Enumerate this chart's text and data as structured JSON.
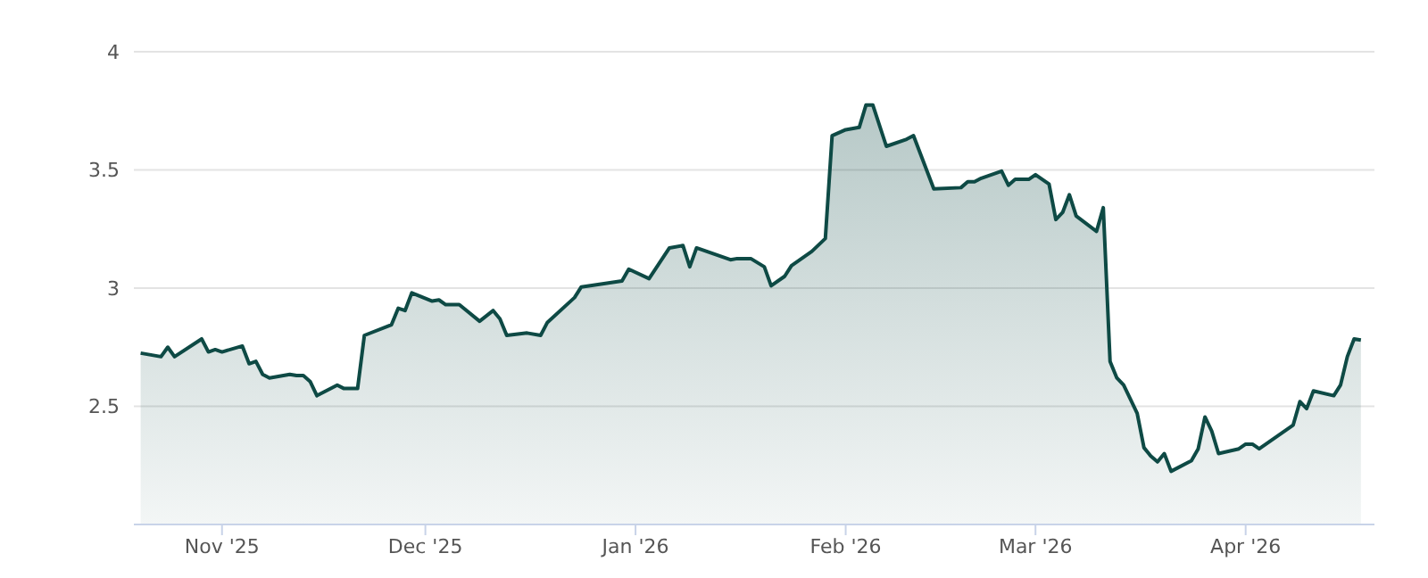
{
  "chart_data": {
    "type": "area",
    "x": [
      "2025-10-20",
      "2025-10-23",
      "2025-10-24",
      "2025-10-25",
      "2025-10-29",
      "2025-10-30",
      "2025-10-31",
      "2025-11-01",
      "2025-11-04",
      "2025-11-05",
      "2025-11-06",
      "2025-11-07",
      "2025-11-08",
      "2025-11-11",
      "2025-11-12",
      "2025-11-13",
      "2025-11-14",
      "2025-11-15",
      "2025-11-18",
      "2025-11-19",
      "2025-11-21",
      "2025-11-22",
      "2025-11-26",
      "2025-11-27",
      "2025-11-28",
      "2025-11-29",
      "2025-12-02",
      "2025-12-03",
      "2025-12-04",
      "2025-12-06",
      "2025-12-09",
      "2025-12-11",
      "2025-12-12",
      "2025-12-13",
      "2025-12-16",
      "2025-12-18",
      "2025-12-19",
      "2025-12-23",
      "2025-12-24",
      "2025-12-30",
      "2025-12-31",
      "2026-01-03",
      "2026-01-06",
      "2026-01-08",
      "2026-01-09",
      "2026-01-10",
      "2026-01-15",
      "2026-01-16",
      "2026-01-18",
      "2026-01-20",
      "2026-01-21",
      "2026-01-23",
      "2026-01-24",
      "2026-01-27",
      "2026-01-29",
      "2026-01-30",
      "2026-02-01",
      "2026-02-03",
      "2026-02-04",
      "2026-02-05",
      "2026-02-07",
      "2026-02-10",
      "2026-02-11",
      "2026-02-14",
      "2026-02-18",
      "2026-02-19",
      "2026-02-20",
      "2026-02-21",
      "2026-02-24",
      "2026-02-25",
      "2026-02-26",
      "2026-02-28",
      "2026-03-01",
      "2026-03-03",
      "2026-03-04",
      "2026-03-05",
      "2026-03-06",
      "2026-03-07",
      "2026-03-10",
      "2026-03-11",
      "2026-03-12",
      "2026-03-13",
      "2026-03-14",
      "2026-03-16",
      "2026-03-17",
      "2026-03-18",
      "2026-03-19",
      "2026-03-20",
      "2026-03-21",
      "2026-03-24",
      "2026-03-25",
      "2026-03-26",
      "2026-03-27",
      "2026-03-28",
      "2026-03-31",
      "2026-04-01",
      "2026-04-02",
      "2026-04-03",
      "2026-04-08",
      "2026-04-09",
      "2026-04-10",
      "2026-04-11",
      "2026-04-14",
      "2026-04-15",
      "2026-04-16",
      "2026-04-17",
      "2026-04-18"
    ],
    "series": [
      {
        "color": "#0e4a45",
        "values": [
          2.725,
          2.71,
          2.75,
          2.71,
          2.785,
          2.73,
          2.74,
          2.73,
          2.755,
          2.68,
          2.69,
          2.635,
          2.62,
          2.635,
          2.63,
          2.63,
          2.605,
          2.545,
          2.59,
          2.575,
          2.575,
          2.8,
          2.845,
          2.915,
          2.905,
          2.98,
          2.945,
          2.95,
          2.93,
          2.93,
          2.86,
          2.905,
          2.87,
          2.8,
          2.81,
          2.8,
          2.855,
          2.96,
          3.005,
          3.03,
          3.08,
          3.04,
          3.17,
          3.18,
          3.09,
          3.17,
          3.12,
          3.125,
          3.125,
          3.09,
          3.01,
          3.05,
          3.095,
          3.155,
          3.21,
          3.645,
          3.67,
          3.68,
          3.775,
          3.775,
          3.6,
          3.63,
          3.645,
          3.42,
          3.425,
          3.45,
          3.45,
          3.465,
          3.495,
          3.435,
          3.46,
          3.46,
          3.48,
          3.44,
          3.29,
          3.32,
          3.395,
          3.305,
          3.24,
          3.34,
          2.69,
          2.62,
          2.59,
          2.47,
          2.325,
          2.29,
          2.265,
          2.3,
          2.225,
          2.27,
          2.32,
          2.455,
          2.395,
          2.3,
          2.32,
          2.34,
          2.34,
          2.32,
          2.42,
          2.52,
          2.49,
          2.565,
          2.545,
          2.59,
          2.71,
          2.785,
          2.78
        ]
      }
    ],
    "xlim": [
      "2025-10-19",
      "2026-04-20"
    ],
    "xticks": [
      {
        "value": "2025-11-01",
        "label": "Nov '25"
      },
      {
        "value": "2025-12-01",
        "label": "Dec '25"
      },
      {
        "value": "2026-01-01",
        "label": "Jan '26"
      },
      {
        "value": "2026-02-01",
        "label": "Feb '26"
      },
      {
        "value": "2026-03-01",
        "label": "Mar '26"
      },
      {
        "value": "2026-04-01",
        "label": "Apr '26"
      }
    ],
    "ylim": [
      2,
      4
    ],
    "yticks": [
      2.5,
      3,
      3.5,
      4
    ],
    "grid": "y",
    "legend": false
  }
}
